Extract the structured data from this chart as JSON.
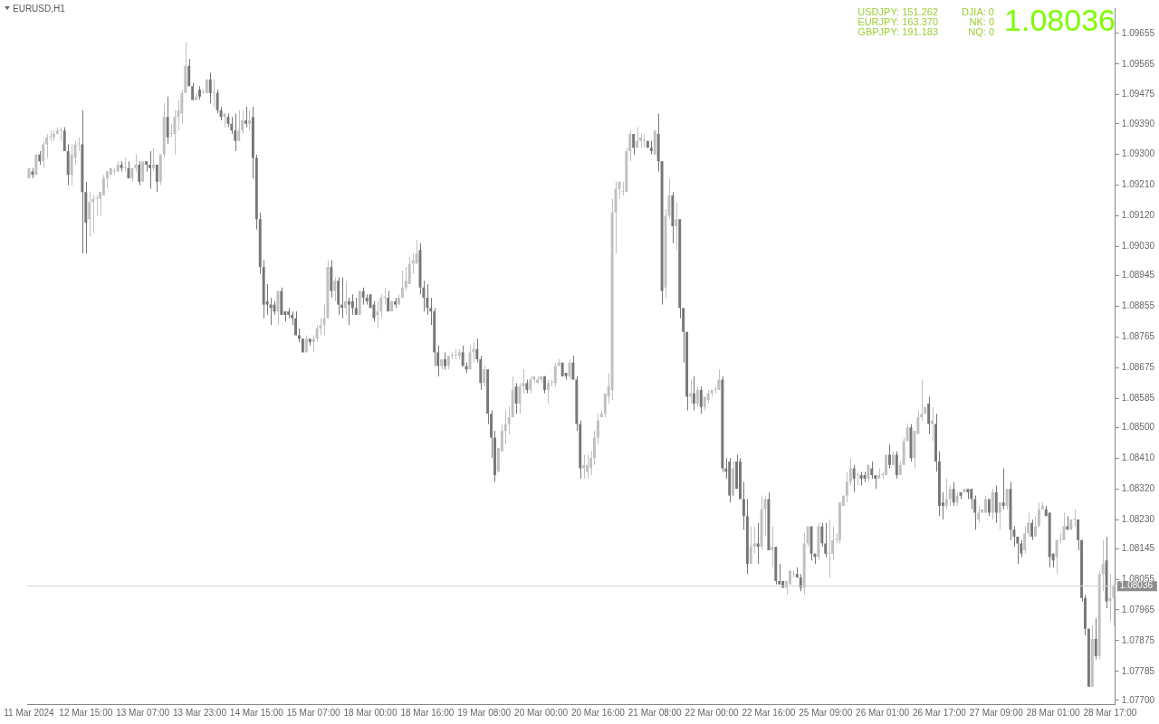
{
  "chart_data": {
    "type": "candlestick",
    "title": "EURUSD,H1",
    "annotations": [
      "USDJPY: 151.262",
      "EURJPY: 163.370",
      "GBPJPY: 191.183",
      "DJIA: 0",
      "NK: 0",
      "NQ: 0",
      "1.08036"
    ],
    "categories": [
      "11 Mar 2024",
      null,
      null,
      null,
      null,
      null,
      null,
      null,
      null,
      null,
      null,
      null,
      null,
      null,
      null,
      null,
      "12 Mar 15:00",
      null,
      null,
      null,
      null,
      null,
      null,
      null,
      null,
      null,
      null,
      null,
      null,
      null,
      null,
      null,
      "13 Mar 07:00",
      null,
      null,
      null,
      null,
      null,
      null,
      null,
      null,
      null,
      null,
      null,
      null,
      null,
      null,
      null,
      "13 Mar 23:00",
      null,
      null,
      null,
      null,
      null,
      null,
      null,
      null,
      null,
      null,
      null,
      null,
      null,
      null,
      null,
      "14 Mar 15:00",
      null,
      null,
      null,
      null,
      null,
      null,
      null,
      null,
      null,
      null,
      null,
      null,
      null,
      null,
      null,
      "15 Mar 07:00",
      null,
      null,
      null,
      null,
      null,
      null,
      null,
      null,
      null,
      null,
      null,
      null,
      null,
      null,
      null,
      "18 Mar 00:00",
      null,
      null,
      null,
      null,
      null,
      null,
      null,
      null,
      null,
      null,
      null,
      null,
      null,
      null,
      null,
      "18 Mar 16:00",
      null,
      null,
      null,
      null,
      null,
      null,
      null,
      null,
      null,
      null,
      null,
      null,
      null,
      null,
      null,
      "19 Mar 08:00",
      null,
      null,
      null,
      null,
      null,
      null,
      null,
      null,
      null,
      null,
      null,
      null,
      null,
      null,
      null,
      "20 Mar 00:00",
      null,
      null,
      null,
      null,
      null,
      null,
      null,
      null,
      null,
      null,
      null,
      null,
      null,
      null,
      null,
      "20 Mar 16:00",
      null,
      null,
      null,
      null,
      null,
      null,
      null,
      null,
      null,
      null,
      null,
      null,
      null,
      null,
      null,
      "21 Mar 08:00",
      null,
      null,
      null,
      null,
      null,
      null,
      null,
      null,
      null,
      null,
      null,
      null,
      null,
      null,
      null,
      "22 Mar 00:00",
      null,
      null,
      null,
      null,
      null,
      null,
      null,
      null,
      null,
      null,
      null,
      null,
      null,
      null,
      null,
      "22 Mar 16:00",
      null,
      null,
      null,
      null,
      null,
      null,
      null,
      null,
      null,
      null,
      null,
      null,
      null,
      null,
      null,
      "25 Mar 09:00",
      null,
      null,
      null,
      null,
      null,
      null,
      null,
      null,
      null,
      null,
      null,
      null,
      null,
      null,
      null,
      "26 Mar 01:00",
      null,
      null,
      null,
      null,
      null,
      null,
      null,
      null,
      null,
      null,
      null,
      null,
      null,
      null,
      null,
      "26 Mar 17:00",
      null,
      null,
      null,
      null,
      null,
      null,
      null,
      null,
      null,
      null,
      null,
      null,
      null,
      null,
      null,
      "27 Mar 09:00",
      null,
      null,
      null,
      null,
      null,
      null,
      null,
      null,
      null,
      null,
      null,
      null,
      null,
      null,
      null,
      "28 Mar 01:00",
      null,
      null,
      null,
      null,
      null,
      null,
      null,
      null,
      null,
      null,
      null,
      null,
      null,
      null,
      null,
      "28 Mar 17:00",
      null
    ],
    "ohlc": [
      [
        1.0923,
        1.0926,
        1.0923,
        1.0926
      ],
      [
        1.0925,
        1.0926,
        1.0923,
        1.0924
      ],
      [
        1.0924,
        1.093,
        1.0924,
        1.093
      ],
      [
        1.093,
        1.0931,
        1.0927,
        1.0928
      ],
      [
        1.0928,
        1.0934,
        1.0926,
        1.0933
      ],
      [
        1.0933,
        1.0936,
        1.0929,
        1.0935
      ],
      [
        1.0935,
        1.0937,
        1.0934,
        1.0935
      ],
      [
        1.0935,
        1.0937,
        1.0934,
        1.0936
      ],
      [
        1.0936,
        1.0938,
        1.0936,
        1.0937
      ],
      [
        1.0937,
        1.0938,
        1.0934,
        1.0937
      ],
      [
        1.0937,
        1.0938,
        1.0931,
        1.0931
      ],
      [
        1.0931,
        1.0933,
        1.0921,
        1.0924
      ],
      [
        1.0924,
        1.0933,
        1.0921,
        1.093
      ],
      [
        1.0929,
        1.0934,
        1.0927,
        1.0933
      ],
      [
        1.0933,
        1.0935,
        1.0931,
        1.0933
      ],
      [
        1.0933,
        1.0943,
        1.0901,
        1.0919
      ],
      [
        1.0919,
        1.0922,
        1.0901,
        1.091
      ],
      [
        1.0911,
        1.0919,
        1.0906,
        1.0916
      ],
      [
        1.0916,
        1.0918,
        1.0907,
        1.0917
      ],
      [
        1.0917,
        1.0918,
        1.0912,
        1.0917
      ],
      [
        1.0917,
        1.0919,
        1.0912,
        1.0919
      ],
      [
        1.0918,
        1.0924,
        1.0918,
        1.0923
      ],
      [
        1.0923,
        1.0925,
        1.092,
        1.0925
      ],
      [
        1.0924,
        1.0926,
        1.0924,
        1.0926
      ],
      [
        1.0925,
        1.0926,
        1.0924,
        1.0925
      ],
      [
        1.0925,
        1.0928,
        1.0925,
        1.0927
      ],
      [
        1.0927,
        1.0928,
        1.0925,
        1.0926
      ],
      [
        1.0926,
        1.0929,
        1.0925,
        1.0926
      ],
      [
        1.0926,
        1.0928,
        1.0923,
        1.0923
      ],
      [
        1.0923,
        1.0926,
        1.0922,
        1.0926
      ],
      [
        1.0926,
        1.093,
        1.0925,
        1.0927
      ],
      [
        1.0927,
        1.0928,
        1.0921,
        1.0922
      ],
      [
        1.0922,
        1.0928,
        1.0922,
        1.0928
      ],
      [
        1.0928,
        1.0928,
        1.0925,
        1.0927
      ],
      [
        1.0927,
        1.0931,
        1.092,
        1.0926
      ],
      [
        1.0926,
        1.0932,
        1.0925,
        1.0927
      ],
      [
        1.0927,
        1.0927,
        1.0919,
        1.0922
      ],
      [
        1.0922,
        1.093,
        1.0921,
        1.093
      ],
      [
        1.093,
        1.0945,
        1.0929,
        1.0941
      ],
      [
        1.0941,
        1.0947,
        1.0933,
        1.0935
      ],
      [
        1.0936,
        1.0939,
        1.0935,
        1.0936
      ],
      [
        1.0936,
        1.0943,
        1.093,
        1.0941
      ],
      [
        1.0941,
        1.0946,
        1.0937,
        1.0943
      ],
      [
        1.0942,
        1.0949,
        1.0939,
        1.0948
      ],
      [
        1.0948,
        1.0963,
        1.0948,
        1.0956
      ],
      [
        1.0956,
        1.0958,
        1.095,
        1.095
      ],
      [
        1.095,
        1.0951,
        1.0946,
        1.0946
      ],
      [
        1.0946,
        1.0948,
        1.0946,
        1.0947
      ],
      [
        1.0949,
        1.095,
        1.0946,
        1.0947
      ],
      [
        1.0948,
        1.0949,
        1.0948,
        1.0948
      ],
      [
        1.0948,
        1.0952,
        1.0948,
        1.0952
      ],
      [
        1.0952,
        1.0954,
        1.0945,
        1.0948
      ],
      [
        1.0948,
        1.0952,
        1.0944,
        1.0948
      ],
      [
        1.0948,
        1.0949,
        1.0942,
        1.0943
      ],
      [
        1.0943,
        1.0944,
        1.094,
        1.0941
      ],
      [
        1.0941,
        1.0942,
        1.0938,
        1.0942
      ],
      [
        1.0941,
        1.0942,
        1.0938,
        1.0939
      ],
      [
        1.0939,
        1.0941,
        1.0936,
        1.0937
      ],
      [
        1.0937,
        1.0942,
        1.0931,
        1.0934
      ],
      [
        1.0934,
        1.0943,
        1.0934,
        1.0937
      ],
      [
        1.0937,
        1.0943,
        1.0936,
        1.094
      ],
      [
        1.094,
        1.0944,
        1.0938,
        1.0939
      ],
      [
        1.0939,
        1.0943,
        1.0937,
        1.094
      ],
      [
        1.0941,
        1.0944,
        1.0923,
        1.0929
      ],
      [
        1.0929,
        1.093,
        1.0908,
        1.0911
      ],
      [
        1.0911,
        1.0913,
        1.0895,
        1.0897
      ],
      [
        1.0897,
        1.0899,
        1.0882,
        1.0886
      ],
      [
        1.0887,
        1.0892,
        1.0883,
        1.0886
      ],
      [
        1.0886,
        1.0888,
        1.088,
        1.0885
      ],
      [
        1.0886,
        1.0887,
        1.0883,
        1.0884
      ],
      [
        1.0884,
        1.089,
        1.088,
        1.089
      ],
      [
        1.089,
        1.0891,
        1.0883,
        1.0883
      ],
      [
        1.0884,
        1.0884,
        1.0881,
        1.0883
      ],
      [
        1.0884,
        1.0885,
        1.0882,
        1.0883
      ],
      [
        1.0883,
        1.0884,
        1.088,
        1.0882
      ],
      [
        1.0882,
        1.0884,
        1.0877,
        1.0877
      ],
      [
        1.0877,
        1.0879,
        1.0875,
        1.0876
      ],
      [
        1.0876,
        1.0876,
        1.0872,
        1.0872
      ],
      [
        1.0872,
        1.0877,
        1.0872,
        1.0876
      ],
      [
        1.0876,
        1.0876,
        1.0874,
        1.0875
      ],
      [
        1.0875,
        1.0877,
        1.0872,
        1.0876
      ],
      [
        1.0876,
        1.088,
        1.0875,
        1.0879
      ],
      [
        1.0879,
        1.0882,
        1.0877,
        1.088
      ],
      [
        1.088,
        1.0886,
        1.0877,
        1.0882
      ],
      [
        1.0882,
        1.0899,
        1.0882,
        1.0897
      ],
      [
        1.0897,
        1.0899,
        1.0888,
        1.089
      ],
      [
        1.089,
        1.0894,
        1.0887,
        1.0893
      ],
      [
        1.0893,
        1.0894,
        1.0883,
        1.0886
      ],
      [
        1.0886,
        1.0894,
        1.0882,
        1.0885
      ],
      [
        1.0885,
        1.0893,
        1.0883,
        1.0887
      ],
      [
        1.0887,
        1.0888,
        1.088,
        1.0886
      ],
      [
        1.0887,
        1.0889,
        1.0883,
        1.0885
      ],
      [
        1.0885,
        1.0888,
        1.0883,
        1.0883
      ],
      [
        1.0883,
        1.089,
        1.0883,
        1.089
      ],
      [
        1.089,
        1.0891,
        1.0886,
        1.0888
      ],
      [
        1.0888,
        1.0889,
        1.0886,
        1.0887
      ],
      [
        1.0889,
        1.0889,
        1.0885,
        1.0885
      ],
      [
        1.0886,
        1.0887,
        1.0881,
        1.0882
      ],
      [
        1.0883,
        1.0887,
        1.0879,
        1.0884
      ],
      [
        1.0884,
        1.0889,
        1.0882,
        1.0888
      ],
      [
        1.0888,
        1.0891,
        1.0886,
        1.0888
      ],
      [
        1.0888,
        1.089,
        1.0884,
        1.0884
      ],
      [
        1.0884,
        1.0887,
        1.0884,
        1.0887
      ],
      [
        1.0887,
        1.0888,
        1.0885,
        1.0886
      ],
      [
        1.0886,
        1.0889,
        1.0886,
        1.0888
      ],
      [
        1.0888,
        1.0896,
        1.0888,
        1.0891
      ],
      [
        1.0891,
        1.0897,
        1.089,
        1.0893
      ],
      [
        1.0892,
        1.09,
        1.0892,
        1.0898
      ],
      [
        1.0898,
        1.0901,
        1.0895,
        1.0899
      ],
      [
        1.0898,
        1.0905,
        1.0898,
        1.0901
      ],
      [
        1.0902,
        1.0904,
        1.0889,
        1.0891
      ],
      [
        1.0891,
        1.0893,
        1.0884,
        1.0888
      ],
      [
        1.0888,
        1.0892,
        1.0883,
        1.0885
      ],
      [
        1.0885,
        1.0888,
        1.088,
        1.0884
      ],
      [
        1.0884,
        1.0885,
        1.0868,
        1.0872
      ],
      [
        1.0872,
        1.0874,
        1.0865,
        1.0868
      ],
      [
        1.0868,
        1.087,
        1.0867,
        1.087
      ],
      [
        1.087,
        1.0872,
        1.0867,
        1.0868
      ],
      [
        1.0868,
        1.0871,
        1.0867,
        1.0871
      ],
      [
        1.0871,
        1.0872,
        1.087,
        1.0871
      ],
      [
        1.0871,
        1.0873,
        1.087,
        1.0871
      ],
      [
        1.0871,
        1.0873,
        1.087,
        1.0872
      ],
      [
        1.0872,
        1.0874,
        1.0868,
        1.0868
      ],
      [
        1.0868,
        1.0869,
        1.0866,
        1.0867
      ],
      [
        1.0867,
        1.0874,
        1.0867,
        1.0872
      ],
      [
        1.0872,
        1.0875,
        1.0869,
        1.0873
      ],
      [
        1.0873,
        1.0876,
        1.0869,
        1.087
      ],
      [
        1.087,
        1.0871,
        1.0861,
        1.0863
      ],
      [
        1.0863,
        1.0868,
        1.0862,
        1.0867
      ],
      [
        1.0867,
        1.0867,
        1.0851,
        1.0854
      ],
      [
        1.0854,
        1.0855,
        1.0841,
        1.0847
      ],
      [
        1.0847,
        1.0849,
        1.0834,
        1.0836
      ],
      [
        1.0837,
        1.0844,
        1.0837,
        1.0844
      ],
      [
        1.0843,
        1.0851,
        1.0843,
        1.0849
      ],
      [
        1.0849,
        1.0855,
        1.0845,
        1.0851
      ],
      [
        1.0851,
        1.0856,
        1.0848,
        1.0853
      ],
      [
        1.0853,
        1.0865,
        1.0853,
        1.0861
      ],
      [
        1.0862,
        1.0863,
        1.0854,
        1.0857
      ],
      [
        1.0857,
        1.0863,
        1.0854,
        1.0862
      ],
      [
        1.0862,
        1.0867,
        1.086,
        1.0863
      ],
      [
        1.0863,
        1.0864,
        1.086,
        1.0861
      ],
      [
        1.0861,
        1.0865,
        1.086,
        1.0864
      ],
      [
        1.0864,
        1.0865,
        1.0863,
        1.0865
      ],
      [
        1.0863,
        1.0865,
        1.0863,
        1.0864
      ],
      [
        1.0864,
        1.0865,
        1.0863,
        1.0865
      ],
      [
        1.0865,
        1.0865,
        1.086,
        1.0861
      ],
      [
        1.0861,
        1.0864,
        1.0857,
        1.0863
      ],
      [
        1.0863,
        1.0864,
        1.0862,
        1.0863
      ],
      [
        1.0863,
        1.0869,
        1.0862,
        1.0868
      ],
      [
        1.0868,
        1.087,
        1.0868,
        1.0869
      ],
      [
        1.0869,
        1.0869,
        1.0865,
        1.0865
      ],
      [
        1.0866,
        1.0866,
        1.0864,
        1.0865
      ],
      [
        1.0865,
        1.087,
        1.0864,
        1.0869
      ],
      [
        1.0869,
        1.0871,
        1.0864,
        1.0864
      ],
      [
        1.0864,
        1.0865,
        1.0849,
        1.0851
      ],
      [
        1.0851,
        1.0852,
        1.0835,
        1.0838
      ],
      [
        1.0838,
        1.0842,
        1.0835,
        1.0839
      ],
      [
        1.0837,
        1.0842,
        1.0835,
        1.0839
      ],
      [
        1.0838,
        1.0843,
        1.0836,
        1.0841
      ],
      [
        1.0841,
        1.0849,
        1.0839,
        1.0847
      ],
      [
        1.0847,
        1.0854,
        1.0845,
        1.0852
      ],
      [
        1.0853,
        1.0855,
        1.0853,
        1.0854
      ],
      [
        1.0854,
        1.086,
        1.0853,
        1.086
      ],
      [
        1.0859,
        1.0866,
        1.0857,
        1.0862
      ],
      [
        1.0861,
        1.0917,
        1.0858,
        1.0913
      ],
      [
        1.0913,
        1.0922,
        1.0901,
        1.092
      ],
      [
        1.092,
        1.0922,
        1.0917,
        1.0922
      ],
      [
        1.0919,
        1.0922,
        1.0918,
        1.0919
      ],
      [
        1.0919,
        1.0932,
        1.0919,
        1.0931
      ],
      [
        1.0931,
        1.0937,
        1.0928,
        1.0936
      ],
      [
        1.0936,
        1.0936,
        1.093,
        1.0932
      ],
      [
        1.0932,
        1.0938,
        1.0932,
        1.0934
      ],
      [
        1.0934,
        1.0936,
        1.0932,
        1.0935
      ],
      [
        1.0934,
        1.0936,
        1.0932,
        1.0934
      ],
      [
        1.0934,
        1.0934,
        1.0932,
        1.0932
      ],
      [
        1.0932,
        1.0934,
        1.093,
        1.0931
      ],
      [
        1.093,
        1.0937,
        1.093,
        1.0937
      ],
      [
        1.0936,
        1.0942,
        1.0925,
        1.0928
      ],
      [
        1.0928,
        1.0928,
        1.0886,
        1.089
      ],
      [
        1.0891,
        1.0914,
        1.0888,
        1.0912
      ],
      [
        1.0912,
        1.0923,
        1.0911,
        1.0918
      ],
      [
        1.0918,
        1.0919,
        1.0904,
        1.0909
      ],
      [
        1.0909,
        1.0916,
        1.0902,
        1.0911
      ],
      [
        1.0911,
        1.0911,
        1.0882,
        1.0885
      ],
      [
        1.0885,
        1.0885,
        1.0869,
        1.0878
      ],
      [
        1.0878,
        1.0878,
        1.0855,
        1.0859
      ],
      [
        1.0859,
        1.0864,
        1.0857,
        1.086
      ],
      [
        1.086,
        1.0865,
        1.0855,
        1.0857
      ],
      [
        1.0857,
        1.0862,
        1.0856,
        1.0861
      ],
      [
        1.0861,
        1.0862,
        1.0854,
        1.0856
      ],
      [
        1.0856,
        1.0859,
        1.0855,
        1.0859
      ],
      [
        1.0858,
        1.0861,
        1.0857,
        1.086
      ],
      [
        1.086,
        1.0861,
        1.0859,
        1.0861
      ],
      [
        1.0861,
        1.0862,
        1.086,
        1.0861
      ],
      [
        1.0861,
        1.0867,
        1.0861,
        1.0864
      ],
      [
        1.0864,
        1.0865,
        1.0837,
        1.0838
      ],
      [
        1.0838,
        1.0841,
        1.0835,
        1.0837
      ],
      [
        1.084,
        1.0841,
        1.0828,
        1.083
      ],
      [
        1.083,
        1.084,
        1.083,
        1.0838
      ],
      [
        1.084,
        1.0842,
        1.0832,
        1.0832
      ],
      [
        1.084,
        1.0841,
        1.0829,
        1.0829
      ],
      [
        1.0829,
        1.0834,
        1.082,
        1.0824
      ],
      [
        1.0824,
        1.0829,
        1.0807,
        1.081
      ],
      [
        1.081,
        1.0821,
        1.081,
        1.0815
      ],
      [
        1.0815,
        1.0821,
        1.0813,
        1.0816
      ],
      [
        1.0816,
        1.0822,
        1.081,
        1.0815
      ],
      [
        1.0815,
        1.083,
        1.0814,
        1.0826
      ],
      [
        1.0826,
        1.083,
        1.0818,
        1.0829
      ],
      [
        1.0829,
        1.0831,
        1.0814,
        1.0814
      ],
      [
        1.0814,
        1.0821,
        1.0809,
        1.0815
      ],
      [
        1.0815,
        1.0815,
        1.0804,
        1.0805
      ],
      [
        1.0805,
        1.081,
        1.0804,
        1.0804
      ],
      [
        1.0805,
        1.0805,
        1.0803,
        1.0803
      ],
      [
        1.0803,
        1.0805,
        1.0801,
        1.0805
      ],
      [
        1.0804,
        1.0808,
        1.0804,
        1.0808
      ],
      [
        1.0807,
        1.0808,
        1.0806,
        1.0807
      ],
      [
        1.0807,
        1.0809,
        1.0806,
        1.0806
      ],
      [
        1.0806,
        1.0807,
        1.0802,
        1.0803
      ],
      [
        1.0803,
        1.0819,
        1.0801,
        1.0816
      ],
      [
        1.0816,
        1.0821,
        1.0815,
        1.0821
      ],
      [
        1.0821,
        1.0821,
        1.0811,
        1.0813
      ],
      [
        1.0813,
        1.0813,
        1.081,
        1.0812
      ],
      [
        1.0812,
        1.0822,
        1.0811,
        1.0821
      ],
      [
        1.0821,
        1.0822,
        1.0815,
        1.0816
      ],
      [
        1.0816,
        1.0822,
        1.0812,
        1.0813
      ],
      [
        1.0813,
        1.0823,
        1.0806,
        1.0813
      ],
      [
        1.0813,
        1.0821,
        1.0811,
        1.0817
      ],
      [
        1.0817,
        1.0819,
        1.0816,
        1.0817
      ],
      [
        1.0817,
        1.0828,
        1.0816,
        1.0828
      ],
      [
        1.0827,
        1.083,
        1.0827,
        1.083
      ],
      [
        1.083,
        1.0837,
        1.0828,
        1.0834
      ],
      [
        1.0834,
        1.0841,
        1.0833,
        1.0838
      ],
      [
        1.0838,
        1.0839,
        1.0831,
        1.0835
      ],
      [
        1.0836,
        1.0837,
        1.0833,
        1.0836
      ],
      [
        1.0836,
        1.0837,
        1.0833,
        1.0835
      ],
      [
        1.0836,
        1.0837,
        1.0834,
        1.0835
      ],
      [
        1.0835,
        1.0839,
        1.0834,
        1.0839
      ],
      [
        1.0838,
        1.084,
        1.0835,
        1.0836
      ],
      [
        1.0836,
        1.0836,
        1.0832,
        1.0835
      ],
      [
        1.0835,
        1.0838,
        1.0835,
        1.0836
      ],
      [
        1.0836,
        1.0837,
        1.0835,
        1.0836
      ],
      [
        1.0836,
        1.0842,
        1.0836,
        1.0842
      ],
      [
        1.0842,
        1.0845,
        1.0838,
        1.0839
      ],
      [
        1.0839,
        1.0843,
        1.0839,
        1.0842
      ],
      [
        1.0842,
        1.0843,
        1.0835,
        1.0836
      ],
      [
        1.0836,
        1.084,
        1.0836,
        1.0839
      ],
      [
        1.0839,
        1.0847,
        1.0839,
        1.0846
      ],
      [
        1.0846,
        1.0851,
        1.0846,
        1.085
      ],
      [
        1.085,
        1.0851,
        1.084,
        1.0841
      ],
      [
        1.0841,
        1.0849,
        1.0838,
        1.0849
      ],
      [
        1.0848,
        1.0855,
        1.0848,
        1.0853
      ],
      [
        1.0853,
        1.0864,
        1.0852,
        1.0854
      ],
      [
        1.0854,
        1.0856,
        1.0854,
        1.0856
      ],
      [
        1.0857,
        1.0859,
        1.0848,
        1.0851
      ],
      [
        1.0851,
        1.0856,
        1.0846,
        1.0852
      ],
      [
        1.0851,
        1.0854,
        1.0837,
        1.084
      ],
      [
        1.084,
        1.0843,
        1.0824,
        1.0827
      ],
      [
        1.0828,
        1.0831,
        1.0823,
        1.0827
      ],
      [
        1.0827,
        1.0835,
        1.0826,
        1.0829
      ],
      [
        1.0829,
        1.0833,
        1.0827,
        1.0832
      ],
      [
        1.0832,
        1.0834,
        1.0827,
        1.0828
      ],
      [
        1.0828,
        1.0831,
        1.0827,
        1.083
      ],
      [
        1.0831,
        1.0831,
        1.0829,
        1.083
      ],
      [
        1.0831,
        1.0832,
        1.0831,
        1.0832
      ],
      [
        1.0832,
        1.0832,
        1.0829,
        1.0831
      ],
      [
        1.0832,
        1.0832,
        1.0826,
        1.0829
      ],
      [
        1.0829,
        1.083,
        1.082,
        1.0825
      ],
      [
        1.0823,
        1.0827,
        1.0822,
        1.0825
      ],
      [
        1.0825,
        1.0826,
        1.0825,
        1.0826
      ],
      [
        1.0825,
        1.083,
        1.0825,
        1.0829
      ],
      [
        1.0829,
        1.0829,
        1.0824,
        1.0825
      ],
      [
        1.0825,
        1.0832,
        1.0823,
        1.0831
      ],
      [
        1.0831,
        1.0833,
        1.0822,
        1.0825
      ],
      [
        1.0825,
        1.0828,
        1.082,
        1.0828
      ],
      [
        1.0828,
        1.0838,
        1.0826,
        1.0827
      ],
      [
        1.0827,
        1.0832,
        1.0826,
        1.0832
      ],
      [
        1.0832,
        1.0834,
        1.0817,
        1.082
      ],
      [
        1.082,
        1.0821,
        1.0815,
        1.0818
      ],
      [
        1.0818,
        1.0818,
        1.081,
        1.0816
      ],
      [
        1.0816,
        1.0817,
        1.0812,
        1.0813
      ],
      [
        1.0814,
        1.0821,
        1.0813,
        1.0819
      ],
      [
        1.0819,
        1.0825,
        1.0818,
        1.0822
      ],
      [
        1.0822,
        1.0823,
        1.0817,
        1.0818
      ],
      [
        1.0818,
        1.0824,
        1.0818,
        1.0821
      ],
      [
        1.0821,
        1.0828,
        1.0821,
        1.0826
      ],
      [
        1.0826,
        1.0828,
        1.0826,
        1.0827
      ],
      [
        1.0826,
        1.0827,
        1.0824,
        1.0824
      ],
      [
        1.0825,
        1.0825,
        1.0809,
        1.0812
      ],
      [
        1.0813,
        1.0813,
        1.0809,
        1.0811
      ],
      [
        1.0812,
        1.0817,
        1.0807,
        1.0817
      ],
      [
        1.0817,
        1.0819,
        1.0816,
        1.0817
      ],
      [
        1.0817,
        1.0825,
        1.0817,
        1.0821
      ],
      [
        1.0821,
        1.0824,
        1.082,
        1.082
      ],
      [
        1.082,
        1.0823,
        1.082,
        1.0823
      ],
      [
        1.0823,
        1.0826,
        1.0821,
        1.0823
      ],
      [
        1.0823,
        1.0823,
        1.0814,
        1.0817
      ],
      [
        1.0817,
        1.0817,
        1.0799,
        1.08
      ],
      [
        1.08,
        1.0801,
        1.0789,
        1.0791
      ],
      [
        1.0791,
        1.0791,
        1.0774,
        1.0774
      ],
      [
        1.0774,
        1.0792,
        1.0774,
        1.0788
      ],
      [
        1.0788,
        1.0794,
        1.0782,
        1.0783
      ],
      [
        1.0783,
        1.0808,
        1.0782,
        1.0807
      ],
      [
        1.0807,
        1.0817,
        1.0802,
        1.081
      ],
      [
        1.0811,
        1.0818,
        1.0797,
        1.0799
      ],
      [
        1.0799,
        1.0807,
        1.0793,
        1.08
      ],
      [
        1.08,
        1.0804,
        1.0792,
        1.08036
      ]
    ],
    "ylim": [
      1.07689,
      1.09729
    ],
    "yticks": [
      {
        "value": 1.077,
        "label": "1.07700"
      },
      1.07785,
      1.07875,
      1.07965,
      1.08055,
      1.08145,
      {
        "value": 1.0823,
        "label": "1.08230"
      },
      {
        "value": 1.0832,
        "label": "1.08320"
      },
      {
        "value": 1.0841,
        "label": "1.08410"
      },
      {
        "value": 1.085,
        "label": "1.08500"
      },
      1.08585,
      1.08675,
      1.08765,
      1.08855,
      1.08945,
      {
        "value": 1.0903,
        "label": "1.09030"
      },
      {
        "value": 1.0912,
        "label": "1.09120"
      },
      {
        "value": 1.0921,
        "label": "1.09210"
      },
      {
        "value": 1.093,
        "label": "1.09300"
      },
      {
        "value": 1.0939,
        "label": "1.09390"
      },
      1.09475,
      1.09565,
      1.09655
    ],
    "ref_lines": [
      {
        "axis": "y",
        "value": 1.08036,
        "label": "1.08036",
        "color": "#d4d4d4"
      }
    ]
  }
}
